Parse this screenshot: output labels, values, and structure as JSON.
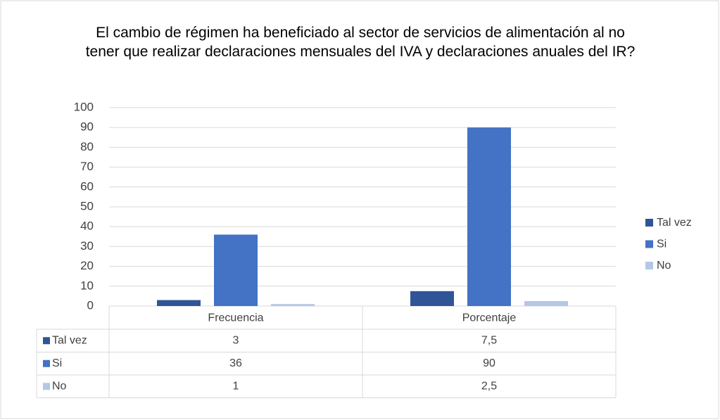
{
  "chart_data": {
    "type": "bar",
    "title": "El cambio de régimen ha beneficiado al sector de servicios de alimentación al no tener que realizar declaraciones mensuales del IVA y declaraciones anuales del IR?",
    "categories": [
      "Frecuencia",
      "Porcentaje"
    ],
    "series": [
      {
        "name": "Tal vez",
        "color": "#2f5597",
        "values": [
          3,
          7.5
        ],
        "value_labels": [
          "3",
          "7,5"
        ]
      },
      {
        "name": "Si",
        "color": "#4472c4",
        "values": [
          36,
          90
        ],
        "value_labels": [
          "36",
          "90"
        ]
      },
      {
        "name": "No",
        "color": "#b4c7e7",
        "values": [
          1,
          2.5
        ],
        "value_labels": [
          "1",
          "2,5"
        ]
      }
    ],
    "ylim": [
      0,
      100
    ],
    "yticks": [
      0,
      10,
      20,
      30,
      40,
      50,
      60,
      70,
      80,
      90,
      100
    ],
    "grid": true,
    "legend": "right",
    "data_table": true
  }
}
